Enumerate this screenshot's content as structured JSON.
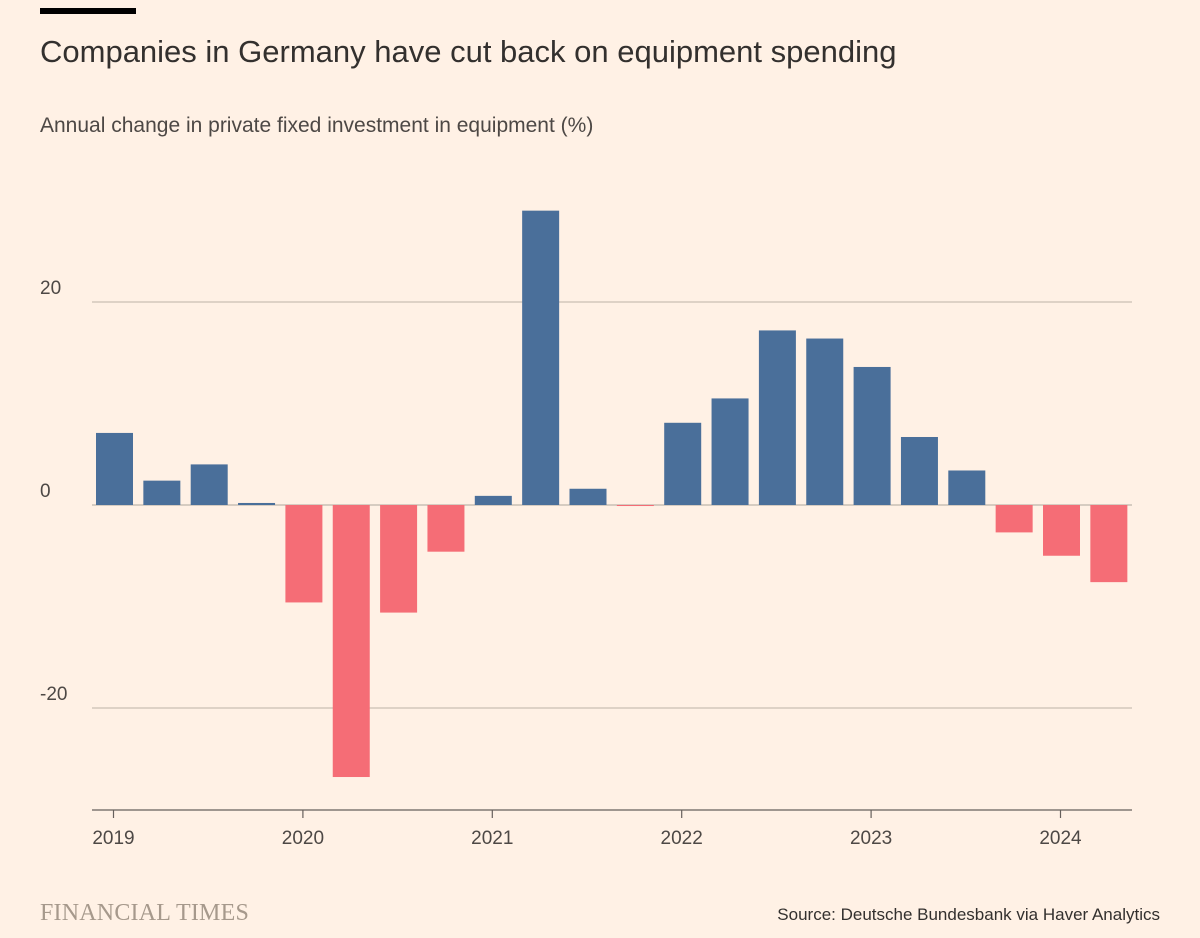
{
  "header": {
    "title": "Companies in Germany have cut back on equipment spending",
    "subtitle": "Annual change in private fixed investment in equipment (%)"
  },
  "footer": {
    "brand": "FINANCIAL TIMES",
    "source": "Source: Deutsche Bundesbank via Haver Analytics"
  },
  "colors": {
    "positive": "#4a6f9a",
    "negative": "#f56d76",
    "gridline": "#c9bfb5",
    "axis": "#66605c",
    "background": "#fff1e5"
  },
  "chart_data": {
    "type": "bar",
    "title": "Companies in Germany have cut back on equipment spending",
    "subtitle": "Annual change in private fixed investment in equipment (%)",
    "xlabel": "",
    "ylabel": "",
    "categories": [
      "2019 Q1",
      "2019 Q2",
      "2019 Q3",
      "2019 Q4",
      "2020 Q1",
      "2020 Q2",
      "2020 Q3",
      "2020 Q4",
      "2021 Q1",
      "2021 Q2",
      "2021 Q3",
      "2021 Q4",
      "2022 Q1",
      "2022 Q2",
      "2022 Q3",
      "2022 Q4",
      "2023 Q1",
      "2023 Q2",
      "2023 Q3",
      "2023 Q4",
      "2024 Q1",
      "2024 Q2"
    ],
    "values": [
      7.1,
      2.4,
      4.0,
      0.2,
      -9.6,
      -26.8,
      -10.6,
      -4.6,
      0.9,
      29.0,
      1.6,
      -0.1,
      8.1,
      10.5,
      17.2,
      16.4,
      13.6,
      6.7,
      3.4,
      -2.7,
      -5.0,
      -7.6
    ],
    "x_tick_labels": [
      "2019",
      "2020",
      "2021",
      "2022",
      "2023",
      "2024"
    ],
    "y_ticks": [
      20,
      0,
      -20
    ],
    "y_tick_labels": [
      "20",
      "0",
      "-20"
    ],
    "ylim": [
      -30,
      30
    ],
    "grid": true,
    "legend": "none",
    "color_rule": "positive values blue, negative values red"
  }
}
